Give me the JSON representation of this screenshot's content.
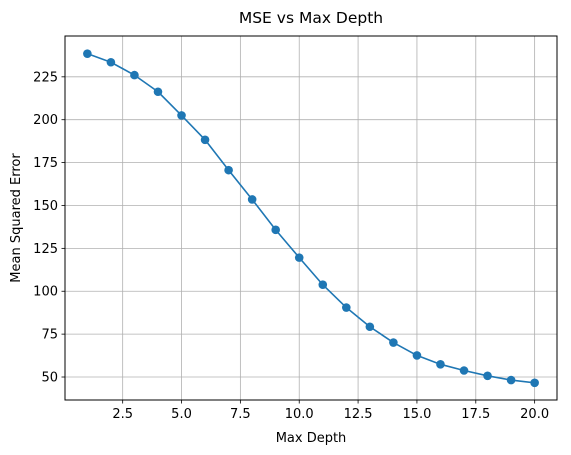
{
  "chart_data": {
    "type": "line",
    "title": "MSE vs Max Depth",
    "xlabel": "Max Depth",
    "ylabel": "Mean Squared Error",
    "xlim": [
      0.05,
      20.95
    ],
    "ylim": [
      36.6,
      248.8
    ],
    "xticks": [
      2.5,
      5.0,
      7.5,
      10.0,
      12.5,
      15.0,
      17.5,
      20.0
    ],
    "xtick_labels": [
      "2.5",
      "5.0",
      "7.5",
      "10.0",
      "12.5",
      "15.0",
      "17.5",
      "20.0"
    ],
    "yticks": [
      50,
      75,
      100,
      125,
      150,
      175,
      200,
      225
    ],
    "ytick_labels": [
      "50",
      "75",
      "100",
      "125",
      "150",
      "175",
      "200",
      "225"
    ],
    "grid": true,
    "marker": "circle",
    "series": [
      {
        "color": "#1f77b4",
        "x": [
          1,
          2,
          3,
          4,
          5,
          6,
          7,
          8,
          9,
          10,
          11,
          12,
          13,
          14,
          15,
          16,
          17,
          18,
          19,
          20
        ],
        "y": [
          238.5,
          233.5,
          226,
          216.3,
          202.5,
          188.3,
          170.6,
          153.5,
          135.8,
          119.6,
          103.8,
          90.5,
          79.3,
          70.1,
          62.6,
          57.4,
          53.8,
          50.7,
          48.2,
          46.6
        ]
      }
    ]
  }
}
